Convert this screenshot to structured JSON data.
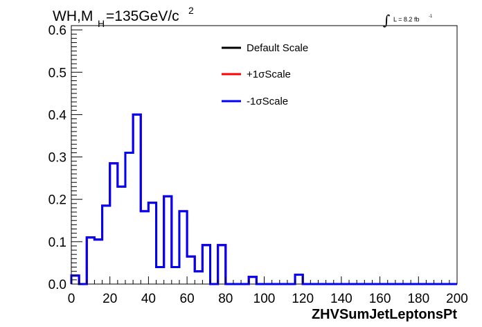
{
  "chart_data": {
    "type": "histogram",
    "title": {
      "text_main": "WH,M",
      "subscript": "H",
      "text_rest": "=135GeV/c",
      "superscript": "2"
    },
    "lumi_label": {
      "text": "L = 8.2 fb",
      "superscript": "-1"
    },
    "xlabel": "ZHVSumJetLeptonsPt",
    "ylabel": "",
    "xlim": [
      0,
      200
    ],
    "ylim": [
      0,
      0.61
    ],
    "x_ticks": [
      0,
      20,
      40,
      60,
      80,
      100,
      120,
      140,
      160,
      180,
      200
    ],
    "y_ticks": [
      0,
      0.1,
      0.2,
      0.3,
      0.4,
      0.5,
      0.6
    ],
    "y_tick_labels": [
      "0.0",
      "0.1",
      "0.2",
      "0.3",
      "0.4",
      "0.5",
      "0.6"
    ],
    "bin_edges": [
      0,
      4,
      8,
      12,
      16,
      20,
      24,
      28,
      32,
      36,
      40,
      44,
      48,
      52,
      56,
      60,
      64,
      68,
      72,
      76,
      80,
      84,
      88,
      92,
      96,
      100,
      104,
      108,
      112,
      116,
      120,
      124,
      128,
      132,
      136,
      140,
      144,
      148,
      152,
      156,
      160,
      164,
      168,
      172,
      176,
      180,
      184,
      188,
      192,
      196,
      200
    ],
    "series": [
      {
        "name": "Default Scale",
        "color": "#000000",
        "values": [
          0.02,
          0.0,
          0.11,
          0.105,
          0.185,
          0.285,
          0.23,
          0.31,
          0.4,
          0.172,
          0.192,
          0.04,
          0.207,
          0.04,
          0.172,
          0.065,
          0.03,
          0.092,
          0.0,
          0.092,
          0.0,
          0.0,
          0.0,
          0.017,
          0.0,
          0.0,
          0.0,
          0.0,
          0.0,
          0.022,
          0.0,
          0.0,
          0.0,
          0.0,
          0.0,
          0.0,
          0.0,
          0.0,
          0.0,
          0.0,
          0.0,
          0.0,
          0.0,
          0.0,
          0.0,
          0.0,
          0.0,
          0.0,
          0.0,
          0.0
        ]
      },
      {
        "name": "+1σScale",
        "color": "#ff0000",
        "values": [
          0.02,
          0.0,
          0.11,
          0.105,
          0.185,
          0.285,
          0.23,
          0.31,
          0.4,
          0.172,
          0.192,
          0.04,
          0.207,
          0.04,
          0.172,
          0.065,
          0.03,
          0.092,
          0.0,
          0.092,
          0.0,
          0.0,
          0.0,
          0.017,
          0.0,
          0.0,
          0.0,
          0.0,
          0.0,
          0.022,
          0.0,
          0.0,
          0.0,
          0.0,
          0.0,
          0.0,
          0.0,
          0.0,
          0.0,
          0.0,
          0.0,
          0.0,
          0.0,
          0.0,
          0.0,
          0.0,
          0.0,
          0.0,
          0.0,
          0.0
        ]
      },
      {
        "name": "-1σScale",
        "color": "#0000ff",
        "values": [
          0.02,
          0.0,
          0.11,
          0.105,
          0.185,
          0.285,
          0.23,
          0.31,
          0.4,
          0.172,
          0.192,
          0.04,
          0.207,
          0.04,
          0.172,
          0.065,
          0.03,
          0.092,
          0.0,
          0.092,
          0.0,
          0.0,
          0.0,
          0.017,
          0.0,
          0.0,
          0.0,
          0.0,
          0.0,
          0.022,
          0.0,
          0.0,
          0.0,
          0.0,
          0.0,
          0.0,
          0.0,
          0.0,
          0.0,
          0.0,
          0.0,
          0.0,
          0.0,
          0.0,
          0.0,
          0.0,
          0.0,
          0.0,
          0.0,
          0.0
        ]
      }
    ],
    "legend": {
      "position": "top-right",
      "entries": [
        "Default Scale",
        "+1σScale",
        "-1σScale"
      ]
    },
    "grid": false
  }
}
